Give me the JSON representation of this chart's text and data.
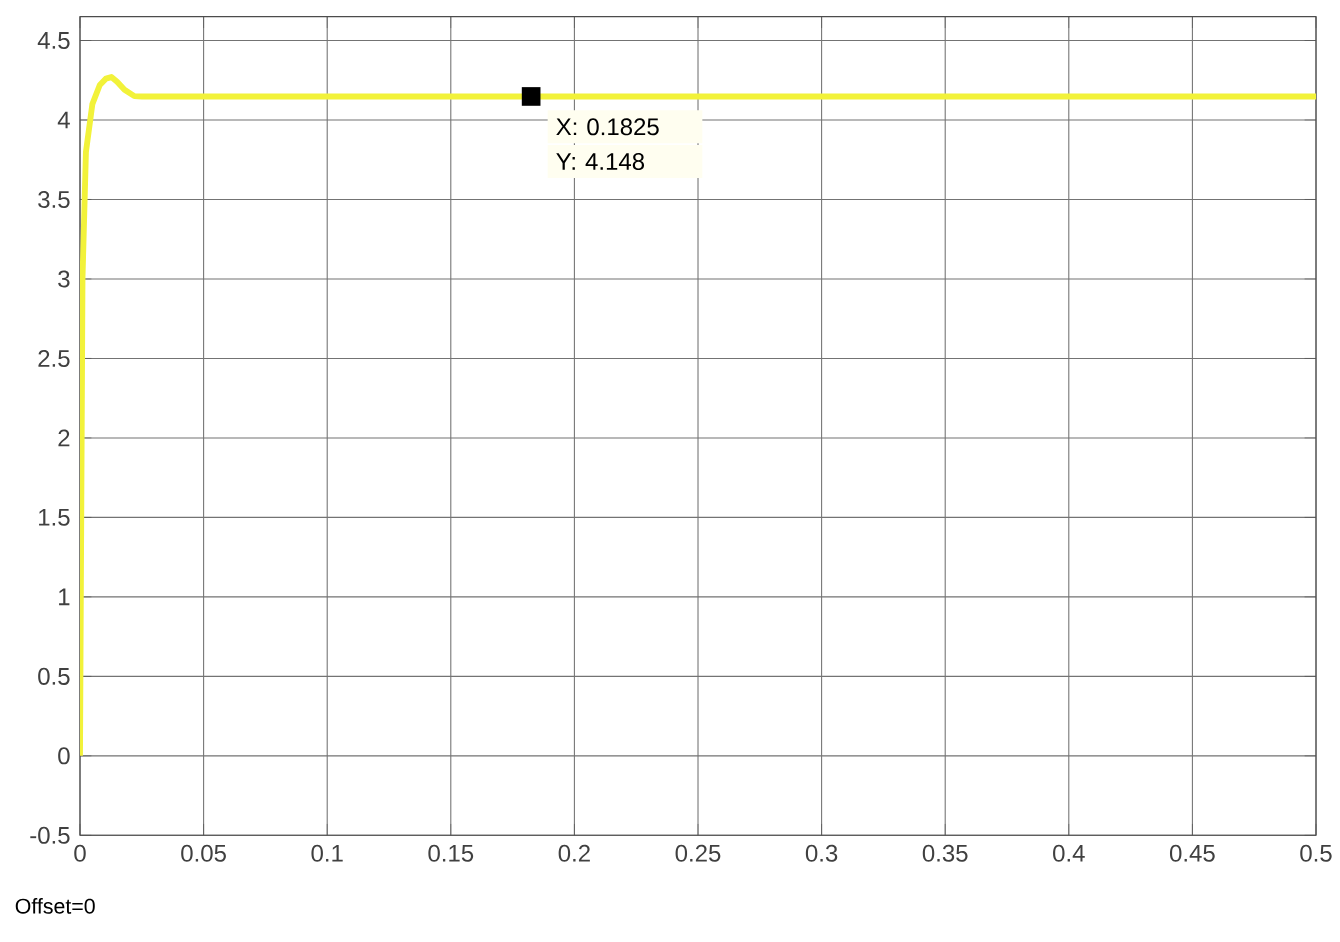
{
  "chart_data": {
    "type": "line",
    "x": [
      0,
      0.001,
      0.0024,
      0.005,
      0.008,
      0.0105,
      0.0127,
      0.015,
      0.018,
      0.022,
      0.025,
      0.1,
      0.2,
      0.3,
      0.4,
      0.5
    ],
    "series": [
      {
        "color": "#f2f23a",
        "values": [
          0,
          3.0,
          3.8,
          4.1,
          4.22,
          4.26,
          4.27,
          4.24,
          4.19,
          4.15,
          4.148,
          4.148,
          4.148,
          4.148,
          4.148,
          4.148
        ]
      }
    ],
    "xlim": [
      0,
      0.5
    ],
    "ylim": [
      -0.5,
      4.65
    ],
    "xticks": [
      0,
      0.05,
      0.1,
      0.15,
      0.2,
      0.25,
      0.3,
      0.35,
      0.4,
      0.45,
      0.5
    ],
    "yticks": [
      -0.5,
      0,
      0.5,
      1,
      1.5,
      2,
      2.5,
      3,
      3.5,
      4,
      4.5
    ],
    "grid": true,
    "marker": "none",
    "line_style": "solid",
    "annotations": [
      {
        "text": "X: 0.1825",
        "x": 0.1825,
        "y": 4.148
      },
      {
        "text": "Y: 4.148",
        "x": 0.1825,
        "y": 4.148
      },
      "Offset=0"
    ]
  }
}
